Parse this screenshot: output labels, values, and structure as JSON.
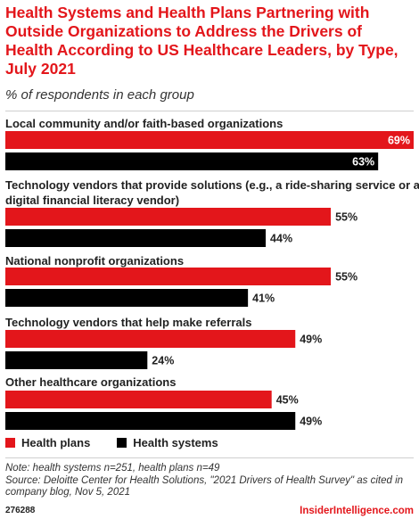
{
  "title": "Health Systems and Health Plans Partnering with Outside Organizations to Address the Drivers of Health According to US Healthcare Leaders, by Type, July 2021",
  "subtitle": "% of respondents in each group",
  "chart_data": {
    "type": "bar",
    "orientation": "horizontal",
    "categories": [
      "Local community and/or faith-based organizations",
      "Technology vendors that provide solutions (e.g., a ride-sharing service or a digital financial literacy vendor)",
      "National nonprofit organizations",
      "Technology vendors that help make referrals",
      "Other healthcare organizations"
    ],
    "series": [
      {
        "name": "Health plans",
        "values": [
          69,
          55,
          55,
          49,
          45
        ],
        "labels": [
          "69%",
          "55%",
          "55%",
          "49%",
          "45%"
        ],
        "color": "#e3161b"
      },
      {
        "name": "Health systems",
        "values": [
          63,
          44,
          41,
          24,
          49
        ],
        "labels": [
          "63%",
          "44%",
          "41%",
          "24%",
          "49%"
        ],
        "color": "#000000"
      }
    ],
    "xlim": [
      0,
      69
    ],
    "legend_position": "bottom-left",
    "grid": false
  },
  "legend": {
    "health_plans": "Health plans",
    "health_systems": "Health systems"
  },
  "note": "Note: health systems n=251, health plans n=49",
  "source": "Source: Deloitte Center for Health Solutions, \"2021 Drivers of Health Survey\" as cited in company blog, Nov 5, 2021",
  "chart_id": "276288",
  "brand": "InsiderIntelligence.com"
}
